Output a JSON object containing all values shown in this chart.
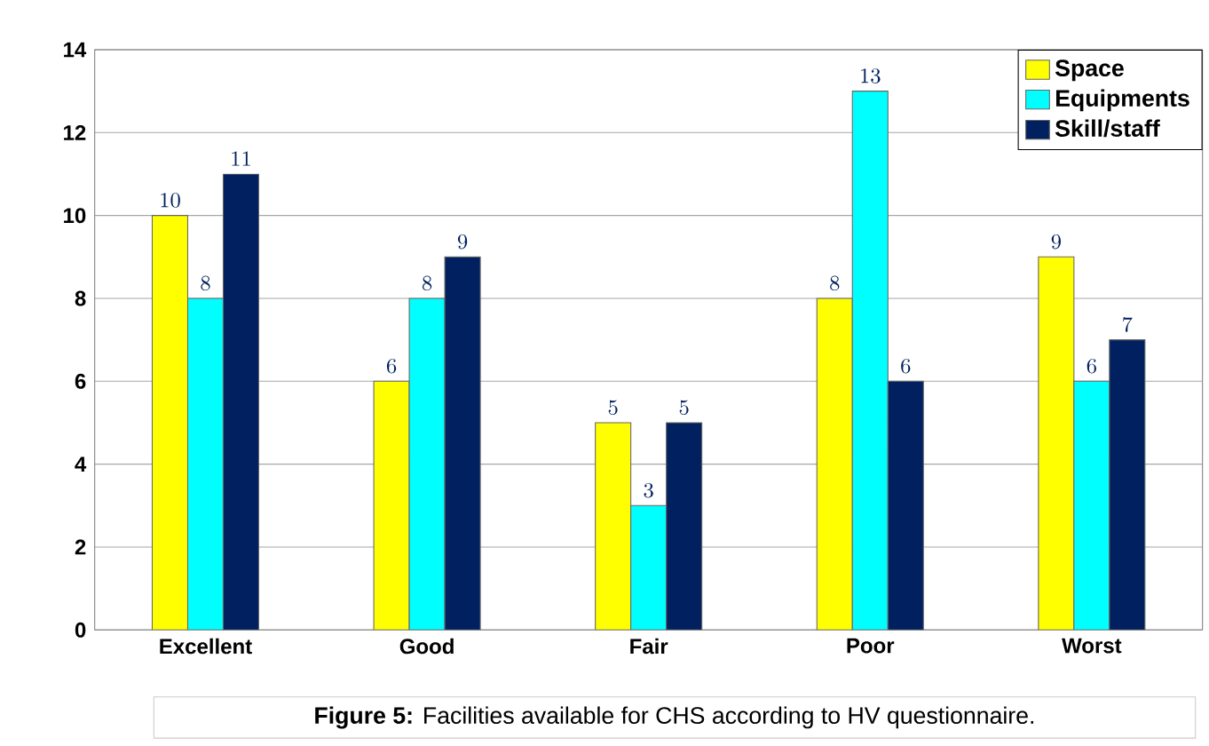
{
  "chart_data": {
    "type": "bar",
    "categories": [
      "Excellent",
      "Good",
      "Fair",
      "Poor",
      "Worst"
    ],
    "series": [
      {
        "name": "Space",
        "color": "#ffff00",
        "values": [
          10,
          6,
          5,
          8,
          9
        ]
      },
      {
        "name": "Equipments",
        "color": "#00ffff",
        "values": [
          8,
          8,
          3,
          13,
          6
        ]
      },
      {
        "name": "Skill/staff",
        "color": "#002060",
        "values": [
          11,
          9,
          5,
          6,
          7
        ]
      }
    ],
    "ylim": [
      0,
      14
    ],
    "yticks": [
      0,
      2,
      4,
      6,
      8,
      10,
      12,
      14
    ],
    "grid": "y",
    "legend": "top right",
    "data_labels": true,
    "annotations": [
      "**Figure 5:** Facilities available for CHS according to HV questionnaire."
    ]
  }
}
